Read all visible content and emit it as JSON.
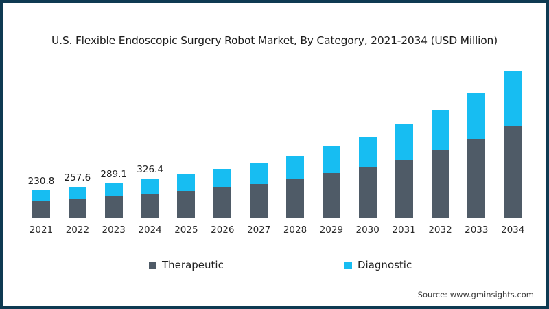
{
  "source": "Source: www.gminsights.com",
  "chart_data": {
    "type": "bar",
    "stacked": true,
    "title": "U.S. Flexible Endoscopic Surgery Robot Market, By Category, 2021-2034 (USD Million)",
    "units": "USD Million",
    "categories": [
      "2021",
      "2022",
      "2023",
      "2024",
      "2025",
      "2026",
      "2027",
      "2028",
      "2029",
      "2030",
      "2031",
      "2032",
      "2033",
      "2034"
    ],
    "series": [
      {
        "name": "Therapeutic",
        "color": "#4f5b67",
        "values": [
          145.0,
          158.0,
          180.0,
          199.0,
          226,
          255,
          280,
          322,
          372,
          425,
          481,
          567,
          654,
          769
        ]
      },
      {
        "name": "Diagnostic",
        "color": "#17bdf2",
        "values": [
          85.8,
          99.6,
          109.1,
          127.4,
          136,
          153,
          180,
          197,
          228,
          252,
          307,
          336,
          393,
          456
        ]
      }
    ],
    "total_labels": [
      "230.8",
      "257.6",
      "289.1",
      "326.4",
      "",
      "",
      "",
      "",
      "",
      "",
      "",
      "",
      "",
      ""
    ],
    "legend_position": "bottom",
    "grid": false,
    "ylim_px_scale_note": "",
    "xlabel": "",
    "ylabel": "",
    "axis_color": "#d9dde1",
    "frame_border_color": "#0e3a52",
    "label_color": "#1f1f1f"
  }
}
